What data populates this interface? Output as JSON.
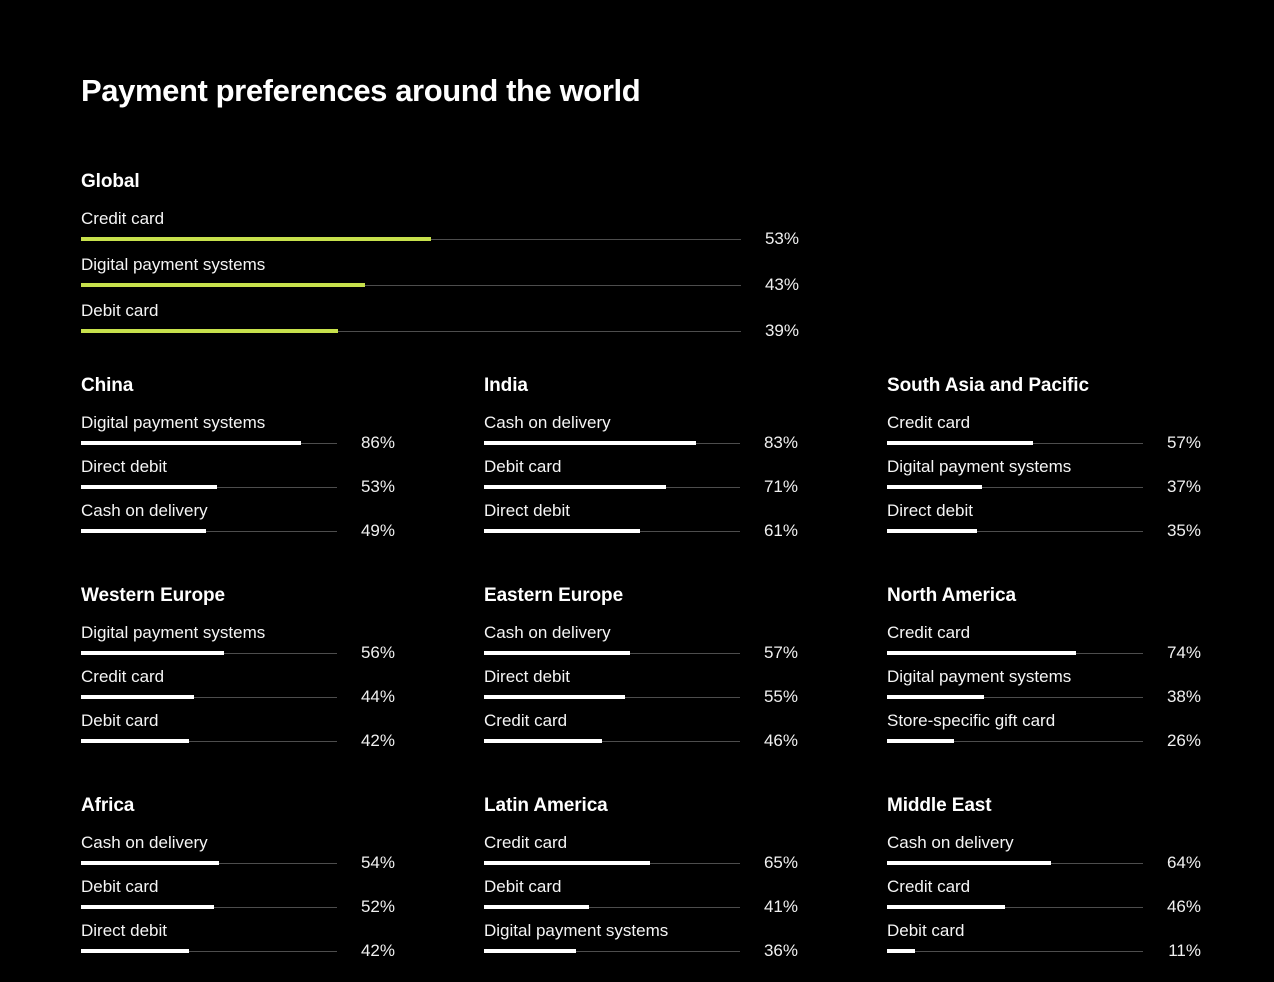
{
  "page": {
    "title": "Payment preferences around the world",
    "background": "#000000"
  },
  "colors": {
    "global_bar": "#c7e14c",
    "regional_bar": "#ffffff",
    "track": "#4d4d4d",
    "text": "#ffffff"
  },
  "chart_data": {
    "type": "bar",
    "orientation": "horizontal",
    "title": "Payment preferences around the world",
    "unit": "%",
    "xlim": [
      0,
      100
    ],
    "grid": false,
    "legend": false,
    "sections": [
      {
        "region": "Global",
        "bar_color": "#c7e14c",
        "rows": [
          {
            "label": "Credit card",
            "value": 53,
            "display": "53%"
          },
          {
            "label": "Digital payment systems",
            "value": 43,
            "display": "43%"
          },
          {
            "label": "Debit card",
            "value": 39,
            "display": "39%"
          }
        ]
      },
      {
        "region": "China",
        "bar_color": "#ffffff",
        "rows": [
          {
            "label": "Digital payment systems",
            "value": 86,
            "display": "86%"
          },
          {
            "label": "Direct debit",
            "value": 53,
            "display": "53%"
          },
          {
            "label": "Cash on delivery",
            "value": 49,
            "display": "49%"
          }
        ]
      },
      {
        "region": "India",
        "bar_color": "#ffffff",
        "rows": [
          {
            "label": "Cash on delivery",
            "value": 83,
            "display": "83%"
          },
          {
            "label": "Debit card",
            "value": 71,
            "display": "71%"
          },
          {
            "label": "Direct debit",
            "value": 61,
            "display": "61%"
          }
        ]
      },
      {
        "region": "South Asia and Pacific",
        "bar_color": "#ffffff",
        "rows": [
          {
            "label": "Credit card",
            "value": 57,
            "display": "57%"
          },
          {
            "label": "Digital payment systems",
            "value": 37,
            "display": "37%"
          },
          {
            "label": "Direct debit",
            "value": 35,
            "display": "35%"
          }
        ]
      },
      {
        "region": "Western Europe",
        "bar_color": "#ffffff",
        "rows": [
          {
            "label": "Digital payment systems",
            "value": 56,
            "display": "56%"
          },
          {
            "label": "Credit card",
            "value": 44,
            "display": "44%"
          },
          {
            "label": "Debit card",
            "value": 42,
            "display": "42%"
          }
        ]
      },
      {
        "region": "Eastern Europe",
        "bar_color": "#ffffff",
        "rows": [
          {
            "label": "Cash on delivery",
            "value": 57,
            "display": "57%"
          },
          {
            "label": "Direct debit",
            "value": 55,
            "display": "55%"
          },
          {
            "label": "Credit card",
            "value": 46,
            "display": "46%"
          }
        ]
      },
      {
        "region": "North America",
        "bar_color": "#ffffff",
        "rows": [
          {
            "label": "Credit card",
            "value": 74,
            "display": "74%"
          },
          {
            "label": "Digital payment systems",
            "value": 38,
            "display": "38%"
          },
          {
            "label": "Store-specific gift card",
            "value": 26,
            "display": "26%"
          }
        ]
      },
      {
        "region": "Africa",
        "bar_color": "#ffffff",
        "rows": [
          {
            "label": "Cash on delivery",
            "value": 54,
            "display": "54%"
          },
          {
            "label": "Debit card",
            "value": 52,
            "display": "52%"
          },
          {
            "label": "Direct debit",
            "value": 42,
            "display": "42%"
          }
        ]
      },
      {
        "region": "Latin America",
        "bar_color": "#ffffff",
        "rows": [
          {
            "label": "Credit card",
            "value": 65,
            "display": "65%"
          },
          {
            "label": "Debit card",
            "value": 41,
            "display": "41%"
          },
          {
            "label": "Digital payment systems",
            "value": 36,
            "display": "36%"
          }
        ]
      },
      {
        "region": "Middle East",
        "bar_color": "#ffffff",
        "rows": [
          {
            "label": "Cash on delivery",
            "value": 64,
            "display": "64%"
          },
          {
            "label": "Credit card",
            "value": 46,
            "display": "46%"
          },
          {
            "label": "Debit card",
            "value": 11,
            "display": "11%"
          }
        ]
      }
    ]
  }
}
